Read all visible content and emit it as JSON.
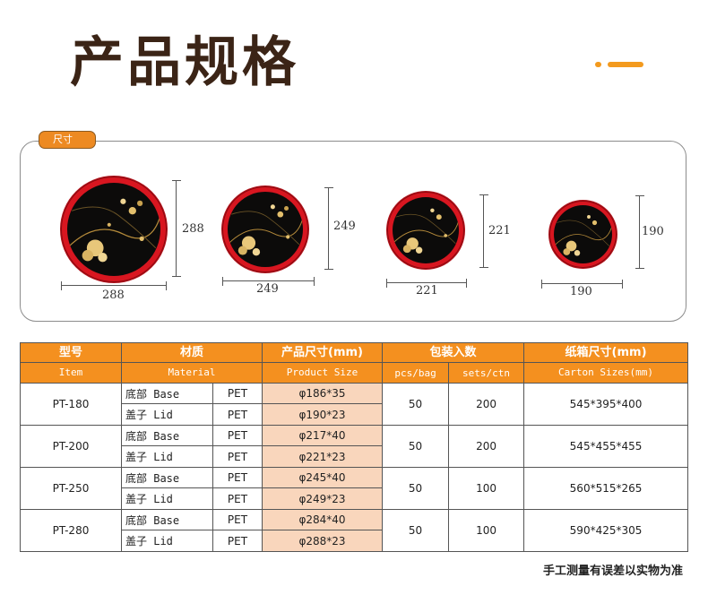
{
  "page_title": "产品规格",
  "colors": {
    "accent": "#f39a1e",
    "title": "#3b2416",
    "header_bg": "#f4901f",
    "peach": "#f9d6bc",
    "plate_rim": "#d81620"
  },
  "size_section": {
    "tab_label": "尺寸",
    "plates": [
      {
        "width_label": "288",
        "height_label": "288"
      },
      {
        "width_label": "249",
        "height_label": "249"
      },
      {
        "width_label": "221",
        "height_label": "221"
      },
      {
        "width_label": "190",
        "height_label": "190"
      }
    ]
  },
  "table": {
    "headers": {
      "model_cn": "型号",
      "model_en": "Item",
      "material_cn": "材质",
      "material_en": "Material",
      "size_cn": "产品尺寸(mm)",
      "size_en": "Product Size",
      "pack_cn": "包装入数",
      "pack_bag": "pcs/bag",
      "pack_ctn": "sets/ctn",
      "carton_cn": "纸箱尺寸(mm)",
      "carton_en": "Carton Sizes(mm)"
    },
    "rows": [
      {
        "model": "PT-180",
        "base_part": "底部 Base",
        "base_material": "PET",
        "base_size": "φ186*35",
        "lid_part": "盖子 Lid",
        "lid_material": "PET",
        "lid_size": "φ190*23",
        "pcs_bag": "50",
        "sets_ctn": "200",
        "carton": "545*395*400"
      },
      {
        "model": "PT-200",
        "base_part": "底部 Base",
        "base_material": "PET",
        "base_size": "φ217*40",
        "lid_part": "盖子 Lid",
        "lid_material": "PET",
        "lid_size": "φ221*23",
        "pcs_bag": "50",
        "sets_ctn": "200",
        "carton": "545*455*455"
      },
      {
        "model": "PT-250",
        "base_part": "底部 Base",
        "base_material": "PET",
        "base_size": "φ245*40",
        "lid_part": "盖子 Lid",
        "lid_material": "PET",
        "lid_size": "φ249*23",
        "pcs_bag": "50",
        "sets_ctn": "100",
        "carton": "560*515*265"
      },
      {
        "model": "PT-280",
        "base_part": "底部 Base",
        "base_material": "PET",
        "base_size": "φ284*40",
        "lid_part": "盖子 Lid",
        "lid_material": "PET",
        "lid_size": "φ288*23",
        "pcs_bag": "50",
        "sets_ctn": "100",
        "carton": "590*425*305"
      }
    ]
  },
  "footnote": "手工测量有误差以实物为准"
}
